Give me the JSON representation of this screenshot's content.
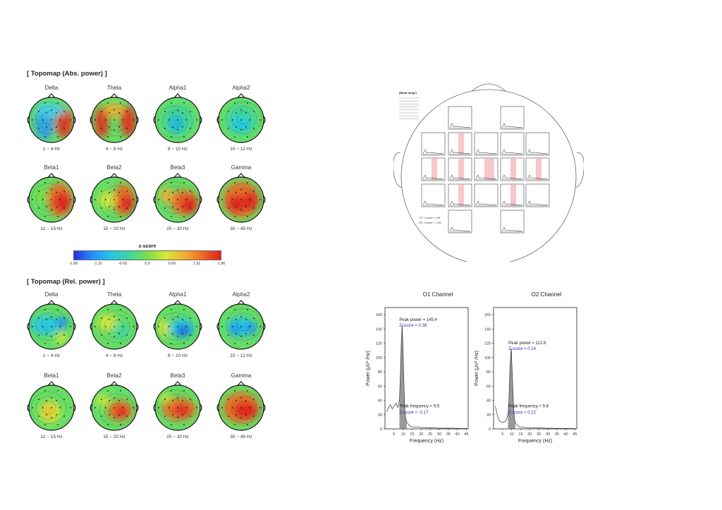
{
  "sections": {
    "abs_title": "[ Topomap (Abs. power) ]",
    "rel_title": "[ Topomap (Rel. power) ]"
  },
  "abs_maps": [
    {
      "label": "Delta",
      "range": "1 ~ 4 Hz"
    },
    {
      "label": "Theta",
      "range": "4 ~ 8 Hz"
    },
    {
      "label": "Alpha1",
      "range": "8 ~ 10 Hz"
    },
    {
      "label": "Alpha2",
      "range": "10 ~ 12 Hz"
    },
    {
      "label": "Beta1",
      "range": "12 ~ 15 Hz"
    },
    {
      "label": "Beta2",
      "range": "15 ~ 20 Hz"
    },
    {
      "label": "Beta3",
      "range": "20 ~ 30 Hz"
    },
    {
      "label": "Gamma",
      "range": "30 ~ 45 Hz"
    }
  ],
  "rel_maps": [
    {
      "label": "Delta",
      "range": "1 ~ 4 Hz"
    },
    {
      "label": "Theta",
      "range": "4 ~ 8 Hz"
    },
    {
      "label": "Alpha1",
      "range": "8 ~ 10 Hz"
    },
    {
      "label": "Alpha2",
      "range": "10 ~ 12 Hz"
    },
    {
      "label": "Beta1",
      "range": "12 ~ 15 Hz"
    },
    {
      "label": "Beta2",
      "range": "15 ~ 20 Hz"
    },
    {
      "label": "Beta3",
      "range": "20 ~ 30 Hz"
    },
    {
      "label": "Gamma",
      "range": "30 ~ 45 Hz"
    }
  ],
  "colorbar": {
    "title": "z-score",
    "ticks": [
      "-1.96",
      "-1.31",
      "-0.65",
      "0.0",
      "0.65",
      "1.31",
      "1.96"
    ],
    "colors": [
      "#2d2de0",
      "#1e90ff",
      "#22c8e6",
      "#3ed6a0",
      "#7ae04a",
      "#d6e83a",
      "#f4b033",
      "#f06a22",
      "#e02020"
    ]
  },
  "headmap": {
    "legend_title": "[Band range]",
    "legend_pos": "z-score > 1.96",
    "legend_neg": "z-score < -1.96"
  },
  "chart_data": [
    {
      "type": "line",
      "title": "O1 Channel",
      "xlabel": "Frequency (Hz)",
      "ylabel": "Power (μV² /Hz)",
      "xlim": [
        0,
        46
      ],
      "ylim": [
        0,
        170
      ],
      "xticks": [
        "5",
        "10",
        "15",
        "20",
        "25",
        "30",
        "35",
        "40",
        "45"
      ],
      "yticks": [
        "0",
        "20",
        "40",
        "60",
        "80",
        "100",
        "120",
        "140",
        "160"
      ],
      "x": [
        1,
        2,
        3,
        4,
        5,
        6,
        7,
        8,
        8.5,
        9,
        9.5,
        10,
        10.5,
        11,
        11.5,
        12,
        13,
        14,
        15,
        17,
        20,
        25,
        30,
        35,
        40,
        45
      ],
      "y": [
        24,
        30,
        34,
        28,
        32,
        36,
        30,
        40,
        75,
        120,
        145.4,
        110,
        60,
        25,
        14,
        10,
        6,
        4,
        3,
        2.5,
        2,
        1.5,
        1,
        1,
        0.8,
        0.6
      ],
      "annotations": {
        "peak_power": "Peak power = 145.4",
        "peak_z": "Z-score = 0.38",
        "peak_freq": "Peak frequency = 9.5",
        "freq_z": "Z-score = -0.17"
      }
    },
    {
      "type": "line",
      "title": "O2 Channel",
      "xlabel": "Frequency (Hz)",
      "ylabel": "Power (μV² /Hz)",
      "xlim": [
        0,
        46
      ],
      "ylim": [
        0,
        170
      ],
      "xticks": [
        "5",
        "10",
        "15",
        "20",
        "25",
        "30",
        "35",
        "40",
        "45"
      ],
      "yticks": [
        "0",
        "20",
        "40",
        "60",
        "80",
        "100",
        "120",
        "140",
        "160"
      ],
      "x": [
        1,
        2,
        3,
        4,
        5,
        6,
        7,
        8,
        8.5,
        9,
        9.5,
        9.8,
        10.3,
        11,
        11.5,
        12,
        13,
        14,
        15,
        17,
        20,
        25,
        30,
        35,
        40,
        45
      ],
      "y": [
        32,
        20,
        12,
        10,
        9,
        10,
        12,
        20,
        40,
        80,
        105,
        112.6,
        80,
        35,
        15,
        9,
        5,
        3,
        2.5,
        2,
        1.5,
        1.2,
        1,
        0.8,
        0.6,
        0.5
      ],
      "annotations": {
        "peak_power": "Peak power = 112.6",
        "peak_z": "Z-score = 0.14",
        "peak_freq": "Peak frequency = 9.8",
        "freq_z": "Z-score = 0.22"
      }
    }
  ]
}
